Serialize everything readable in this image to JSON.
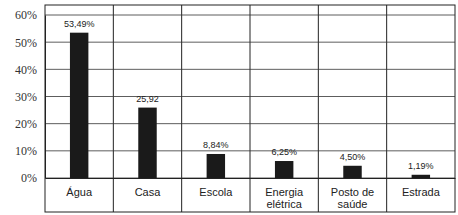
{
  "chart_data": {
    "type": "bar",
    "categories": [
      "Água",
      "Casa",
      "Escola",
      "Energia elétrica",
      "Posto de saúde",
      "Estrada"
    ],
    "values": [
      53.49,
      25.92,
      8.84,
      6.25,
      4.5,
      1.19
    ],
    "value_labels": [
      "53,49%",
      "25,92",
      "8,84%",
      "6,25%",
      "4,50%",
      "1,19%"
    ],
    "color": "#1a1a1a",
    "ylim": [
      0,
      60
    ],
    "yticks": [
      {
        "value": 0,
        "label": "0%"
      },
      {
        "value": 10,
        "label": "10%"
      },
      {
        "value": 20,
        "label": "20%"
      },
      {
        "value": 30,
        "label": "30%"
      },
      {
        "value": 40,
        "label": "40%"
      },
      {
        "value": 50,
        "label": "50%"
      },
      {
        "value": 60,
        "label": "60%"
      }
    ],
    "grid": true,
    "data_labels": true
  }
}
